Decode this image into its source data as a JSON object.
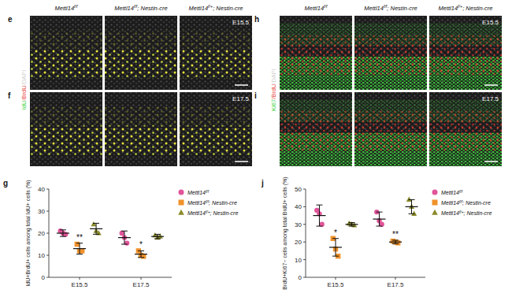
{
  "image_groups": [
    {
      "columns": [
        "Mettl14f/f",
        "Mettl14f/f; Nestin-cre",
        "Mettl14f/+; Nestin-cre"
      ],
      "channel_label": [
        {
          "text": "IdU",
          "color": "#39d239"
        },
        {
          "text": "/BrdU",
          "color": "#e8433a"
        },
        {
          "text": "/DAPI",
          "color": "#cfcfcf"
        }
      ],
      "stain": "IdU",
      "rows": [
        {
          "panel": "e",
          "stage": "E15.5"
        },
        {
          "panel": "f",
          "stage": "E17.5"
        }
      ]
    },
    {
      "columns": [
        "Mettl14f/f",
        "Mettl14f/f; Nestin-cre",
        "Mettl14f/+; Nestin-cre"
      ],
      "channel_label": [
        {
          "text": "Ki67",
          "color": "#39d239"
        },
        {
          "text": "/BrdU",
          "color": "#e8433a"
        },
        {
          "text": "/DAPI",
          "color": "#cfcfcf"
        }
      ],
      "stain": "Ki67",
      "rows": [
        {
          "panel": "h",
          "stage": "E15.5"
        },
        {
          "panel": "i",
          "stage": "E17.5"
        }
      ]
    }
  ],
  "chart_data": [
    {
      "type": "dot",
      "panel": "g",
      "y_label": "IdU+BrdU+ cells among total IdU+ cells (%)",
      "categories": [
        "E15.5",
        "E17.5"
      ],
      "ylim": [
        0,
        40
      ],
      "yticks": [
        0,
        10,
        20,
        30,
        40
      ],
      "legend": "right",
      "series": [
        {
          "name": "Mettl14f/f",
          "color": "#e0559a",
          "marker": "circle",
          "values": [
            20,
            18
          ],
          "error": [
            1.5,
            3
          ],
          "points": [
            [
              21,
              20,
              19.5
            ],
            [
              20,
              18,
              15.5
            ]
          ]
        },
        {
          "name": "Mettl14f/f; Nestin-cre",
          "color": "#f0922b",
          "marker": "square",
          "values": [
            13,
            10.5
          ],
          "error": [
            2.5,
            1.5
          ],
          "points": [
            [
              15,
              12,
              12
            ],
            [
              12,
              10,
              9.5
            ]
          ]
        },
        {
          "name": "Mettl14f/+; Nestin-cre",
          "color": "#8a8a2a",
          "marker": "triangle",
          "values": [
            22,
            18.5
          ],
          "error": [
            2.5,
            1
          ],
          "points": [
            [
              24,
              21,
              20
            ],
            [
              19,
              18,
              18.5
            ]
          ]
        }
      ],
      "annotations": [
        {
          "text": "**",
          "category": 0,
          "series": 1
        },
        {
          "text": "*",
          "category": 1,
          "series": 1
        }
      ]
    },
    {
      "type": "dot",
      "panel": "j",
      "y_label": "BrdU+Ki67− cells among total BrdU+ cells (%)",
      "categories": [
        "E15.5",
        "E17.5"
      ],
      "ylim": [
        0,
        50
      ],
      "yticks": [
        0,
        10,
        20,
        30,
        40,
        50
      ],
      "legend": "right",
      "series": [
        {
          "name": "Mettl14f/f",
          "color": "#e0559a",
          "marker": "circle",
          "values": [
            35,
            33
          ],
          "error": [
            6,
            4
          ],
          "points": [
            [
              38,
              36,
              30
            ],
            [
              37,
              32,
              30
            ]
          ]
        },
        {
          "name": "Mettl14f/f; Nestin-cre",
          "color": "#f0922b",
          "marker": "square",
          "values": [
            17,
            20
          ],
          "error": [
            5,
            1
          ],
          "points": [
            [
              22,
              16,
              12
            ],
            [
              20.5,
              20,
              19.5
            ]
          ]
        },
        {
          "name": "Mettl14f/+; Nestin-cre",
          "color": "#8a8a2a",
          "marker": "triangle",
          "values": [
            30,
            40
          ],
          "error": [
            1,
            4
          ],
          "points": [
            [
              30.5,
              30,
              29.5
            ],
            [
              44,
              40,
              36
            ]
          ]
        }
      ],
      "annotations": [
        {
          "text": "*",
          "category": 0,
          "series": 1
        },
        {
          "text": "**",
          "category": 1,
          "series": 1
        }
      ]
    }
  ]
}
